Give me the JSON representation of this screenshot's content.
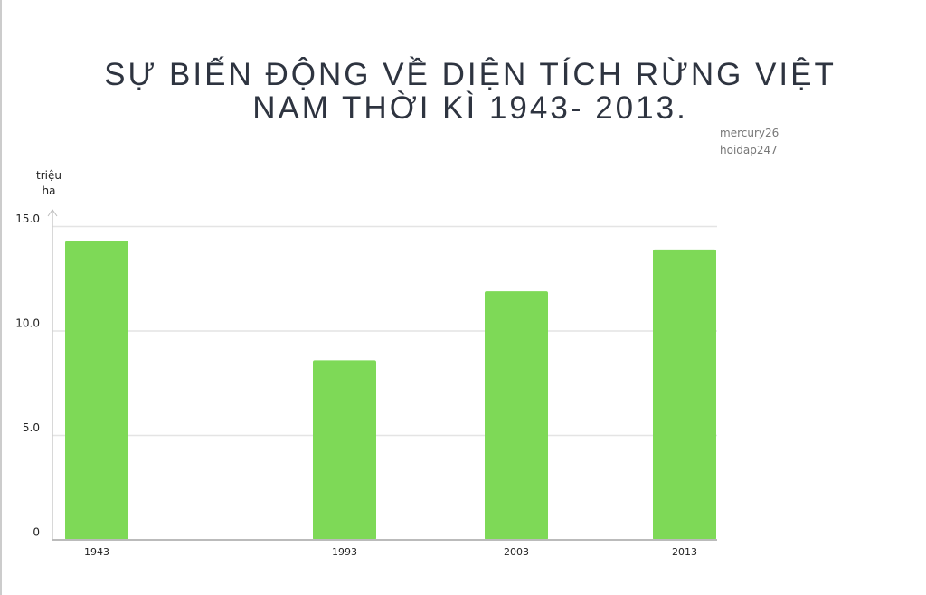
{
  "chart_data": {
    "type": "bar",
    "title": "SỰ BIẾN ĐỘNG VỀ DIỆN TÍCH RỪNG VIỆT NAM THỜI KÌ 1943- 2013.",
    "annotations": [
      "mercury26",
      "hoidap247"
    ],
    "y_label": "triệu ha",
    "categories": [
      "1943",
      "1993",
      "2003",
      "2013"
    ],
    "values": [
      14.3,
      8.6,
      11.9,
      13.9
    ],
    "color": "#7ed957",
    "ylim": [
      0,
      15.8
    ],
    "yticks": [
      0,
      {
        "value": 5,
        "label": "5.0"
      },
      {
        "value": 10,
        "label": "10.0"
      },
      {
        "value": 15,
        "label": "15.0"
      }
    ],
    "grid": true
  }
}
